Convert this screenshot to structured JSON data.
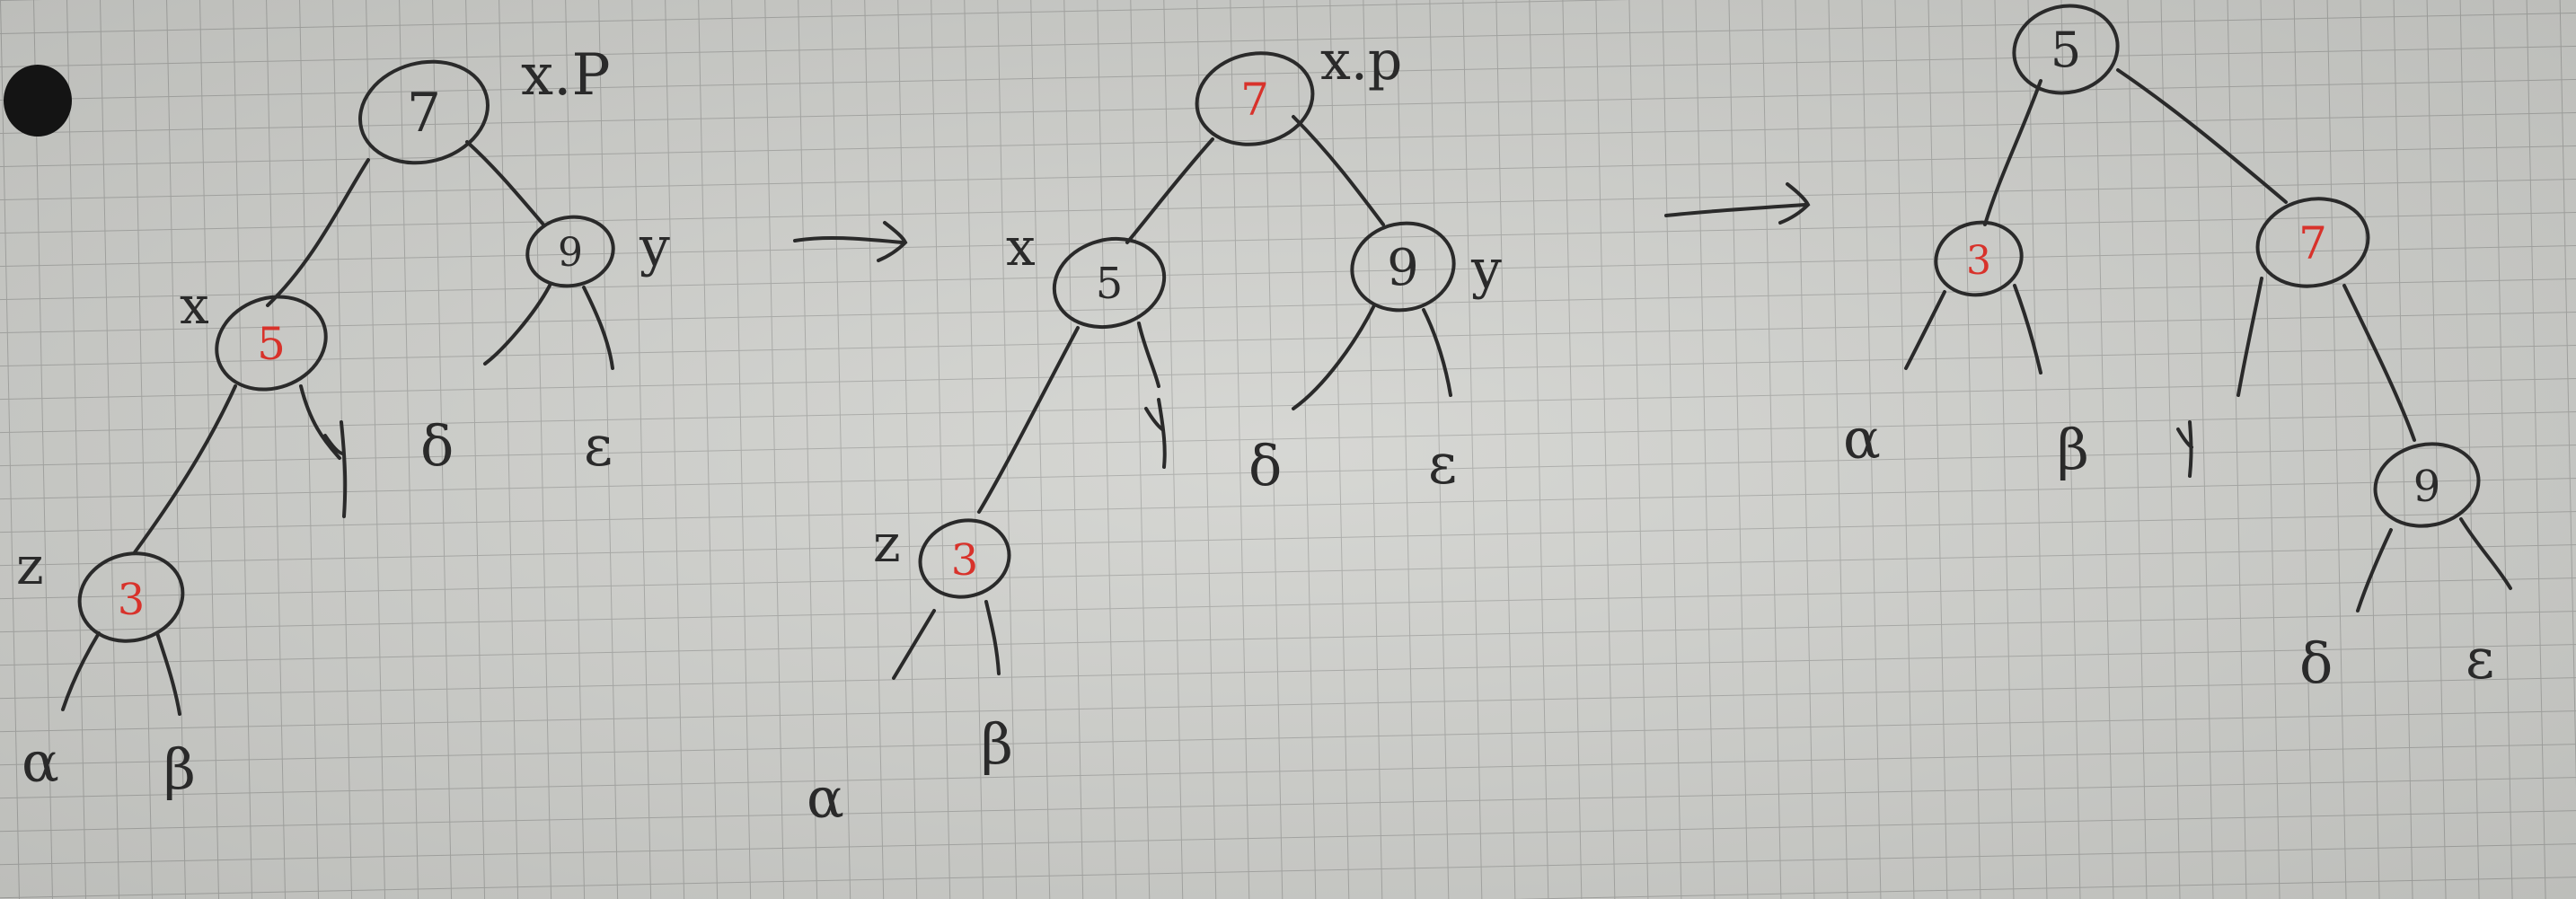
{
  "colors": {
    "paper": "#cfd0cc",
    "grid": "#a9aaa7",
    "ink": "#2a2a2a",
    "red_ink": "#d8322b",
    "punch_hole": "#141414"
  },
  "trees": [
    {
      "nodes": [
        {
          "id": "n7",
          "key": "7",
          "key_color": "dark",
          "label": "x.P"
        },
        {
          "id": "n9",
          "key": "9",
          "key_color": "dark",
          "label": "y"
        },
        {
          "id": "n5",
          "key": "5",
          "key_color": "red",
          "label": "x"
        },
        {
          "id": "n3",
          "key": "3",
          "key_color": "red",
          "label": "z"
        }
      ],
      "leaves": [
        {
          "id": "delta",
          "symbol": "δ"
        },
        {
          "id": "epsilon",
          "symbol": "ε"
        },
        {
          "id": "gamma",
          "symbol": "γ"
        },
        {
          "id": "alpha",
          "symbol": "α"
        },
        {
          "id": "beta",
          "symbol": "β"
        }
      ]
    },
    {
      "nodes": [
        {
          "id": "n7",
          "key": "7",
          "key_color": "red",
          "label": "x.p"
        },
        {
          "id": "n5",
          "key": "5",
          "key_color": "dark",
          "label": "x"
        },
        {
          "id": "n9",
          "key": "9",
          "key_color": "dark",
          "label": "y"
        },
        {
          "id": "n3",
          "key": "3",
          "key_color": "red",
          "label": "z"
        }
      ],
      "leaves": [
        {
          "id": "gamma",
          "symbol": "γ"
        },
        {
          "id": "delta",
          "symbol": "δ"
        },
        {
          "id": "epsilon",
          "symbol": "ε"
        },
        {
          "id": "beta",
          "symbol": "β"
        },
        {
          "id": "alpha",
          "symbol": "α"
        }
      ]
    },
    {
      "nodes": [
        {
          "id": "n5",
          "key": "5",
          "key_color": "dark",
          "label": ""
        },
        {
          "id": "n3",
          "key": "3",
          "key_color": "red",
          "label": ""
        },
        {
          "id": "n7",
          "key": "7",
          "key_color": "red",
          "label": ""
        },
        {
          "id": "n9",
          "key": "9",
          "key_color": "dark",
          "label": ""
        }
      ],
      "leaves": [
        {
          "id": "alpha",
          "symbol": "α"
        },
        {
          "id": "beta",
          "symbol": "β"
        },
        {
          "id": "gamma",
          "symbol": "γ"
        },
        {
          "id": "delta",
          "symbol": "δ"
        },
        {
          "id": "epsilon",
          "symbol": "ε"
        }
      ]
    }
  ],
  "arrows": [
    {
      "symbol": "→"
    },
    {
      "symbol": "→"
    }
  ]
}
